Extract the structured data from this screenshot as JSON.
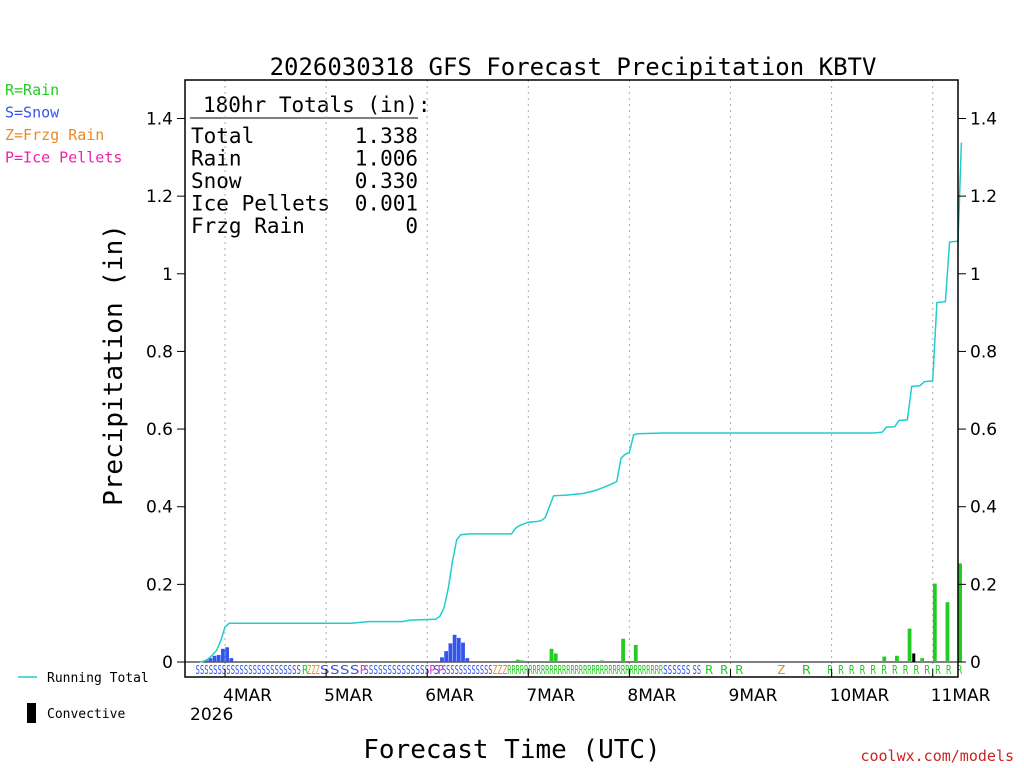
{
  "chart_data": {
    "type": "bar",
    "title": "2026030318 GFS Forecast Precipitation KBTV",
    "xlabel": "Forecast Time (UTC)",
    "ylabel": "Precipitation (in)",
    "ylim": [
      0,
      1.48
    ],
    "xlim_hours": [
      -3.5,
      180
    ],
    "yticks": [
      0,
      0.2,
      0.4,
      0.6,
      0.8,
      1,
      1.2,
      1.4
    ],
    "ytick_labels": [
      "0",
      "0.2",
      "0.4",
      "0.6",
      "0.8",
      "1",
      "1.2",
      "1.4"
    ],
    "xticks": [
      {
        "hour": 6,
        "label": "4MAR"
      },
      {
        "hour": 30,
        "label": "5MAR"
      },
      {
        "hour": 54,
        "label": "6MAR"
      },
      {
        "hour": 78,
        "label": "7MAR"
      },
      {
        "hour": 102,
        "label": "8MAR"
      },
      {
        "hour": 126,
        "label": "9MAR"
      },
      {
        "hour": 150,
        "label": "10MAR"
      },
      {
        "hour": 174,
        "label": "11MAR"
      }
    ],
    "year_label": "2026",
    "type_legend": [
      {
        "label": "R=Rain",
        "color": "#22cc22"
      },
      {
        "label": "S=Snow",
        "color": "#3355ee"
      },
      {
        "label": "Z=Frzg Rain",
        "color": "#ee8822"
      },
      {
        "label": "P=Ice Pellets",
        "color": "#ee22aa"
      }
    ],
    "series_legend": [
      {
        "label": "Running Total",
        "color": "#22cccc"
      },
      {
        "label": "Convective",
        "color": "#000000"
      }
    ],
    "totals_header": "180hr Totals (in):",
    "totals": [
      {
        "name": "Total",
        "value": "1.338"
      },
      {
        "name": "Rain",
        "value": "1.006"
      },
      {
        "name": "Snow",
        "value": "0.330"
      },
      {
        "name": "Ice Pellets",
        "value": "0.001"
      },
      {
        "name": "Frzg Rain",
        "value": "0"
      }
    ],
    "running_total": [
      {
        "h": 0,
        "v": 0
      },
      {
        "h": 1,
        "v": 0.002
      },
      {
        "h": 2,
        "v": 0.008
      },
      {
        "h": 3,
        "v": 0.018
      },
      {
        "h": 4,
        "v": 0.03
      },
      {
        "h": 5,
        "v": 0.055
      },
      {
        "h": 6,
        "v": 0.09
      },
      {
        "h": 7,
        "v": 0.1
      },
      {
        "h": 14,
        "v": 0.1
      },
      {
        "h": 24,
        "v": 0.1
      },
      {
        "h": 36,
        "v": 0.1
      },
      {
        "h": 40,
        "v": 0.104
      },
      {
        "h": 48,
        "v": 0.104
      },
      {
        "h": 50,
        "v": 0.108
      },
      {
        "h": 56,
        "v": 0.11
      },
      {
        "h": 57,
        "v": 0.118
      },
      {
        "h": 58,
        "v": 0.14
      },
      {
        "h": 59,
        "v": 0.19
      },
      {
        "h": 60,
        "v": 0.26
      },
      {
        "h": 61,
        "v": 0.315
      },
      {
        "h": 62,
        "v": 0.328
      },
      {
        "h": 64,
        "v": 0.33
      },
      {
        "h": 68,
        "v": 0.33
      },
      {
        "h": 72,
        "v": 0.33
      },
      {
        "h": 74,
        "v": 0.33
      },
      {
        "h": 75,
        "v": 0.345
      },
      {
        "h": 76,
        "v": 0.352
      },
      {
        "h": 78,
        "v": 0.36
      },
      {
        "h": 80,
        "v": 0.362
      },
      {
        "h": 81,
        "v": 0.364
      },
      {
        "h": 82,
        "v": 0.372
      },
      {
        "h": 83,
        "v": 0.4
      },
      {
        "h": 84,
        "v": 0.428
      },
      {
        "h": 87,
        "v": 0.43
      },
      {
        "h": 91,
        "v": 0.434
      },
      {
        "h": 94,
        "v": 0.442
      },
      {
        "h": 97,
        "v": 0.455
      },
      {
        "h": 99,
        "v": 0.465
      },
      {
        "h": 100,
        "v": 0.525
      },
      {
        "h": 101,
        "v": 0.535
      },
      {
        "h": 102,
        "v": 0.54
      },
      {
        "h": 103,
        "v": 0.585
      },
      {
        "h": 104,
        "v": 0.588
      },
      {
        "h": 110,
        "v": 0.59
      },
      {
        "h": 126,
        "v": 0.59
      },
      {
        "h": 150,
        "v": 0.59
      },
      {
        "h": 160,
        "v": 0.59
      },
      {
        "h": 162,
        "v": 0.592
      },
      {
        "h": 163,
        "v": 0.605
      },
      {
        "h": 165,
        "v": 0.606
      },
      {
        "h": 166,
        "v": 0.622
      },
      {
        "h": 168,
        "v": 0.624
      },
      {
        "h": 169,
        "v": 0.71
      },
      {
        "h": 171,
        "v": 0.712
      },
      {
        "h": 172,
        "v": 0.722
      },
      {
        "h": 174,
        "v": 0.724
      },
      {
        "h": 175,
        "v": 0.926
      },
      {
        "h": 177,
        "v": 0.928
      },
      {
        "h": 178,
        "v": 1.082
      },
      {
        "h": 180,
        "v": 1.084
      },
      {
        "h": 180.8,
        "v": 1.338
      }
    ],
    "bars": [
      {
        "h": 1.5,
        "v": 0.004,
        "c": "#3355ee"
      },
      {
        "h": 2.5,
        "v": 0.01,
        "c": "#3355ee"
      },
      {
        "h": 3.5,
        "v": 0.016,
        "c": "#3355ee"
      },
      {
        "h": 4.5,
        "v": 0.018,
        "c": "#3355ee"
      },
      {
        "h": 5.5,
        "v": 0.034,
        "c": "#3355ee"
      },
      {
        "h": 6.5,
        "v": 0.038,
        "c": "#3355ee"
      },
      {
        "h": 7.5,
        "v": 0.01,
        "c": "#3355ee"
      },
      {
        "h": 57.5,
        "v": 0.012,
        "c": "#3355ee"
      },
      {
        "h": 58.5,
        "v": 0.028,
        "c": "#3355ee"
      },
      {
        "h": 59.5,
        "v": 0.048,
        "c": "#3355ee"
      },
      {
        "h": 60.5,
        "v": 0.07,
        "c": "#3355ee"
      },
      {
        "h": 61.5,
        "v": 0.062,
        "c": "#3355ee"
      },
      {
        "h": 62.5,
        "v": 0.05,
        "c": "#3355ee"
      },
      {
        "h": 63.5,
        "v": 0.01,
        "c": "#3355ee"
      },
      {
        "h": 75.5,
        "v": 0.006,
        "c": "#22cc22"
      },
      {
        "h": 76.5,
        "v": 0.004,
        "c": "#22cc22"
      },
      {
        "h": 83.5,
        "v": 0.034,
        "c": "#22cc22"
      },
      {
        "h": 84.5,
        "v": 0.022,
        "c": "#22cc22"
      },
      {
        "h": 89.5,
        "v": 0.003,
        "c": "#22cc22"
      },
      {
        "h": 95.5,
        "v": 0.004,
        "c": "#22cc22"
      },
      {
        "h": 100.5,
        "v": 0.06,
        "c": "#22cc22"
      },
      {
        "h": 103.5,
        "v": 0.044,
        "c": "#22cc22"
      },
      {
        "h": 162.5,
        "v": 0.014,
        "c": "#22cc22"
      },
      {
        "h": 165.5,
        "v": 0.016,
        "c": "#22cc22"
      },
      {
        "h": 168.5,
        "v": 0.086,
        "c": "#22cc22"
      },
      {
        "h": 171.5,
        "v": 0.01,
        "c": "#22cc22"
      },
      {
        "h": 174.5,
        "v": 0.202,
        "c": "#22cc22"
      },
      {
        "h": 177.5,
        "v": 0.154,
        "c": "#22cc22"
      },
      {
        "h": 180.5,
        "v": 0.254,
        "c": "#22cc22"
      }
    ],
    "convective": [
      {
        "h": 169.5,
        "v": 0.022
      }
    ],
    "ptype_runs": [
      {
        "start": -1,
        "end": 24,
        "text": "SSSSSSSSSSSSSSSSSSSSSSSS",
        "color": "#3355ee"
      },
      {
        "start": 24.3,
        "end": 25.3,
        "text": "R",
        "color": "#22cc22"
      },
      {
        "start": 25.5,
        "end": 28.5,
        "text": "ZZZ",
        "color": "#ee8822"
      },
      {
        "start": 28.5,
        "end": 38,
        "text": "SSSS",
        "color": "#3355ee"
      },
      {
        "start": 38,
        "end": 39,
        "text": "P",
        "color": "#ee22aa"
      },
      {
        "start": 39,
        "end": 54.5,
        "text": "SSSSSSSSSSSSSS",
        "color": "#3355ee"
      },
      {
        "start": 54.5,
        "end": 55.5,
        "text": "P",
        "color": "#ee22aa"
      },
      {
        "start": 55.5,
        "end": 56.5,
        "text": "S",
        "color": "#3355ee"
      },
      {
        "start": 56.5,
        "end": 57.5,
        "text": "P",
        "color": "#ee22aa"
      },
      {
        "start": 57.5,
        "end": 69.5,
        "text": "SSSSSSSSSSSS",
        "color": "#3355ee"
      },
      {
        "start": 69.5,
        "end": 73,
        "text": "ZZZ",
        "color": "#ee8822"
      },
      {
        "start": 73,
        "end": 110,
        "text": "RRRRRRRRRRRRRRRRRRRRRRRRRRRRRRRRRRRRR",
        "color": "#22cc22"
      },
      {
        "start": 110,
        "end": 116.5,
        "text": "SSSSSS",
        "color": "#3355ee"
      },
      {
        "start": 117,
        "end": 119,
        "text": "SS",
        "color": "#3355ee"
      },
      {
        "start": 120,
        "end": 129,
        "text": "R R R",
        "color": "#22cc22"
      },
      {
        "start": 137,
        "end": 139,
        "text": "Z",
        "color": "#ee8822"
      },
      {
        "start": 143,
        "end": 145,
        "text": "R",
        "color": "#22cc22"
      },
      {
        "start": 149,
        "end": 181,
        "text": "R R R R R R R R R R R R R",
        "color": "#22cc22"
      }
    ],
    "running_total_color": "#22cccc",
    "watermark": "coolwx.com/models",
    "watermark_color": "#cc2222"
  }
}
